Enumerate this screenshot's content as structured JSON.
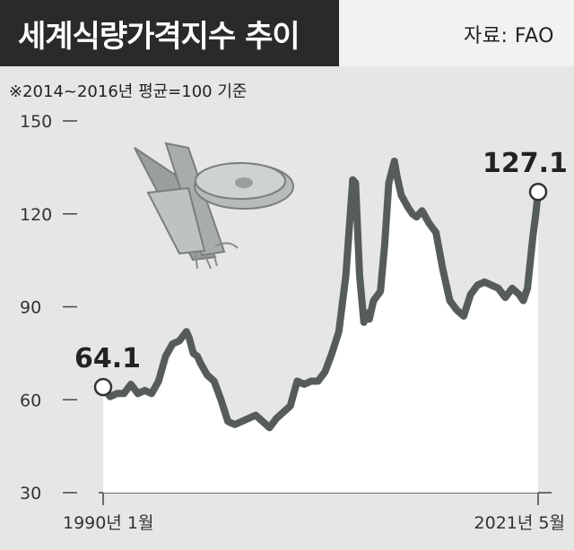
{
  "header": {
    "title": "세계식량가격지수 추이",
    "source": "자료: FAO",
    "note": "※2014~2016년 평균=100 기준"
  },
  "colors": {
    "line": "#565c5c",
    "area": "#ffffff",
    "background": "#e6e6e6",
    "title_bg": "#2a2a2a"
  },
  "icons": [
    "vegetable-illustration-icon",
    "meat-steak-icon"
  ],
  "chart_data": {
    "type": "area",
    "title": "세계식량가격지수 추이",
    "xlabel": "",
    "ylabel": "",
    "ylim": [
      30,
      150
    ],
    "yticks": [
      30,
      60,
      90,
      120,
      150
    ],
    "xtick_labels": [
      "1990년 1월",
      "2021년 5월"
    ],
    "grid": false,
    "series": [
      {
        "x": [
          1990.0,
          1990.5,
          1991.0,
          1991.5,
          1992.0,
          1992.5,
          1993.0,
          1993.5,
          1994.0,
          1994.5,
          1995.0,
          1995.5,
          1996.0,
          1996.2,
          1996.5,
          1996.8,
          1997.0,
          1997.5,
          1998.0,
          1998.5,
          1999.0,
          1999.5,
          2000.0,
          2000.5,
          2001.0,
          2001.5,
          2002.0,
          2002.5,
          2003.0,
          2003.5,
          2004.0,
          2004.5,
          2005.0,
          2005.5,
          2006.0,
          2006.5,
          2007.0,
          2007.5,
          2008.0,
          2008.2,
          2008.5,
          2008.8,
          2009.0,
          2009.2,
          2009.5,
          2010.0,
          2010.3,
          2010.6,
          2011.0,
          2011.2,
          2011.5,
          2012.0,
          2012.3,
          2012.6,
          2013.0,
          2013.5,
          2014.0,
          2014.5,
          2015.0,
          2015.5,
          2016.0,
          2016.5,
          2017.0,
          2017.5,
          2018.0,
          2018.5,
          2019.0,
          2019.5,
          2020.0,
          2020.3,
          2020.6,
          2021.0,
          2021.2,
          2021.37
        ],
        "values": [
          64.1,
          61,
          62,
          62,
          65,
          62,
          63,
          62,
          66,
          74,
          78,
          79,
          82,
          80,
          75,
          74,
          72,
          68,
          66,
          60,
          53,
          52,
          53,
          54,
          55,
          53,
          51,
          54,
          56,
          58,
          66,
          65,
          66,
          66,
          69,
          75,
          82,
          100,
          131,
          130,
          100,
          85,
          88,
          86,
          92,
          95,
          110,
          130,
          137,
          132,
          126,
          122,
          120,
          119,
          121,
          117,
          114,
          102,
          92,
          89,
          87,
          94,
          97,
          98,
          97,
          96,
          93,
          96,
          94,
          92,
          96,
          113,
          120,
          127.1
        ]
      }
    ],
    "annotations": [
      {
        "x": 1990.0,
        "y": 64.1,
        "label": "64.1"
      },
      {
        "x": 2021.37,
        "y": 127.1,
        "label": "127.1"
      }
    ]
  }
}
